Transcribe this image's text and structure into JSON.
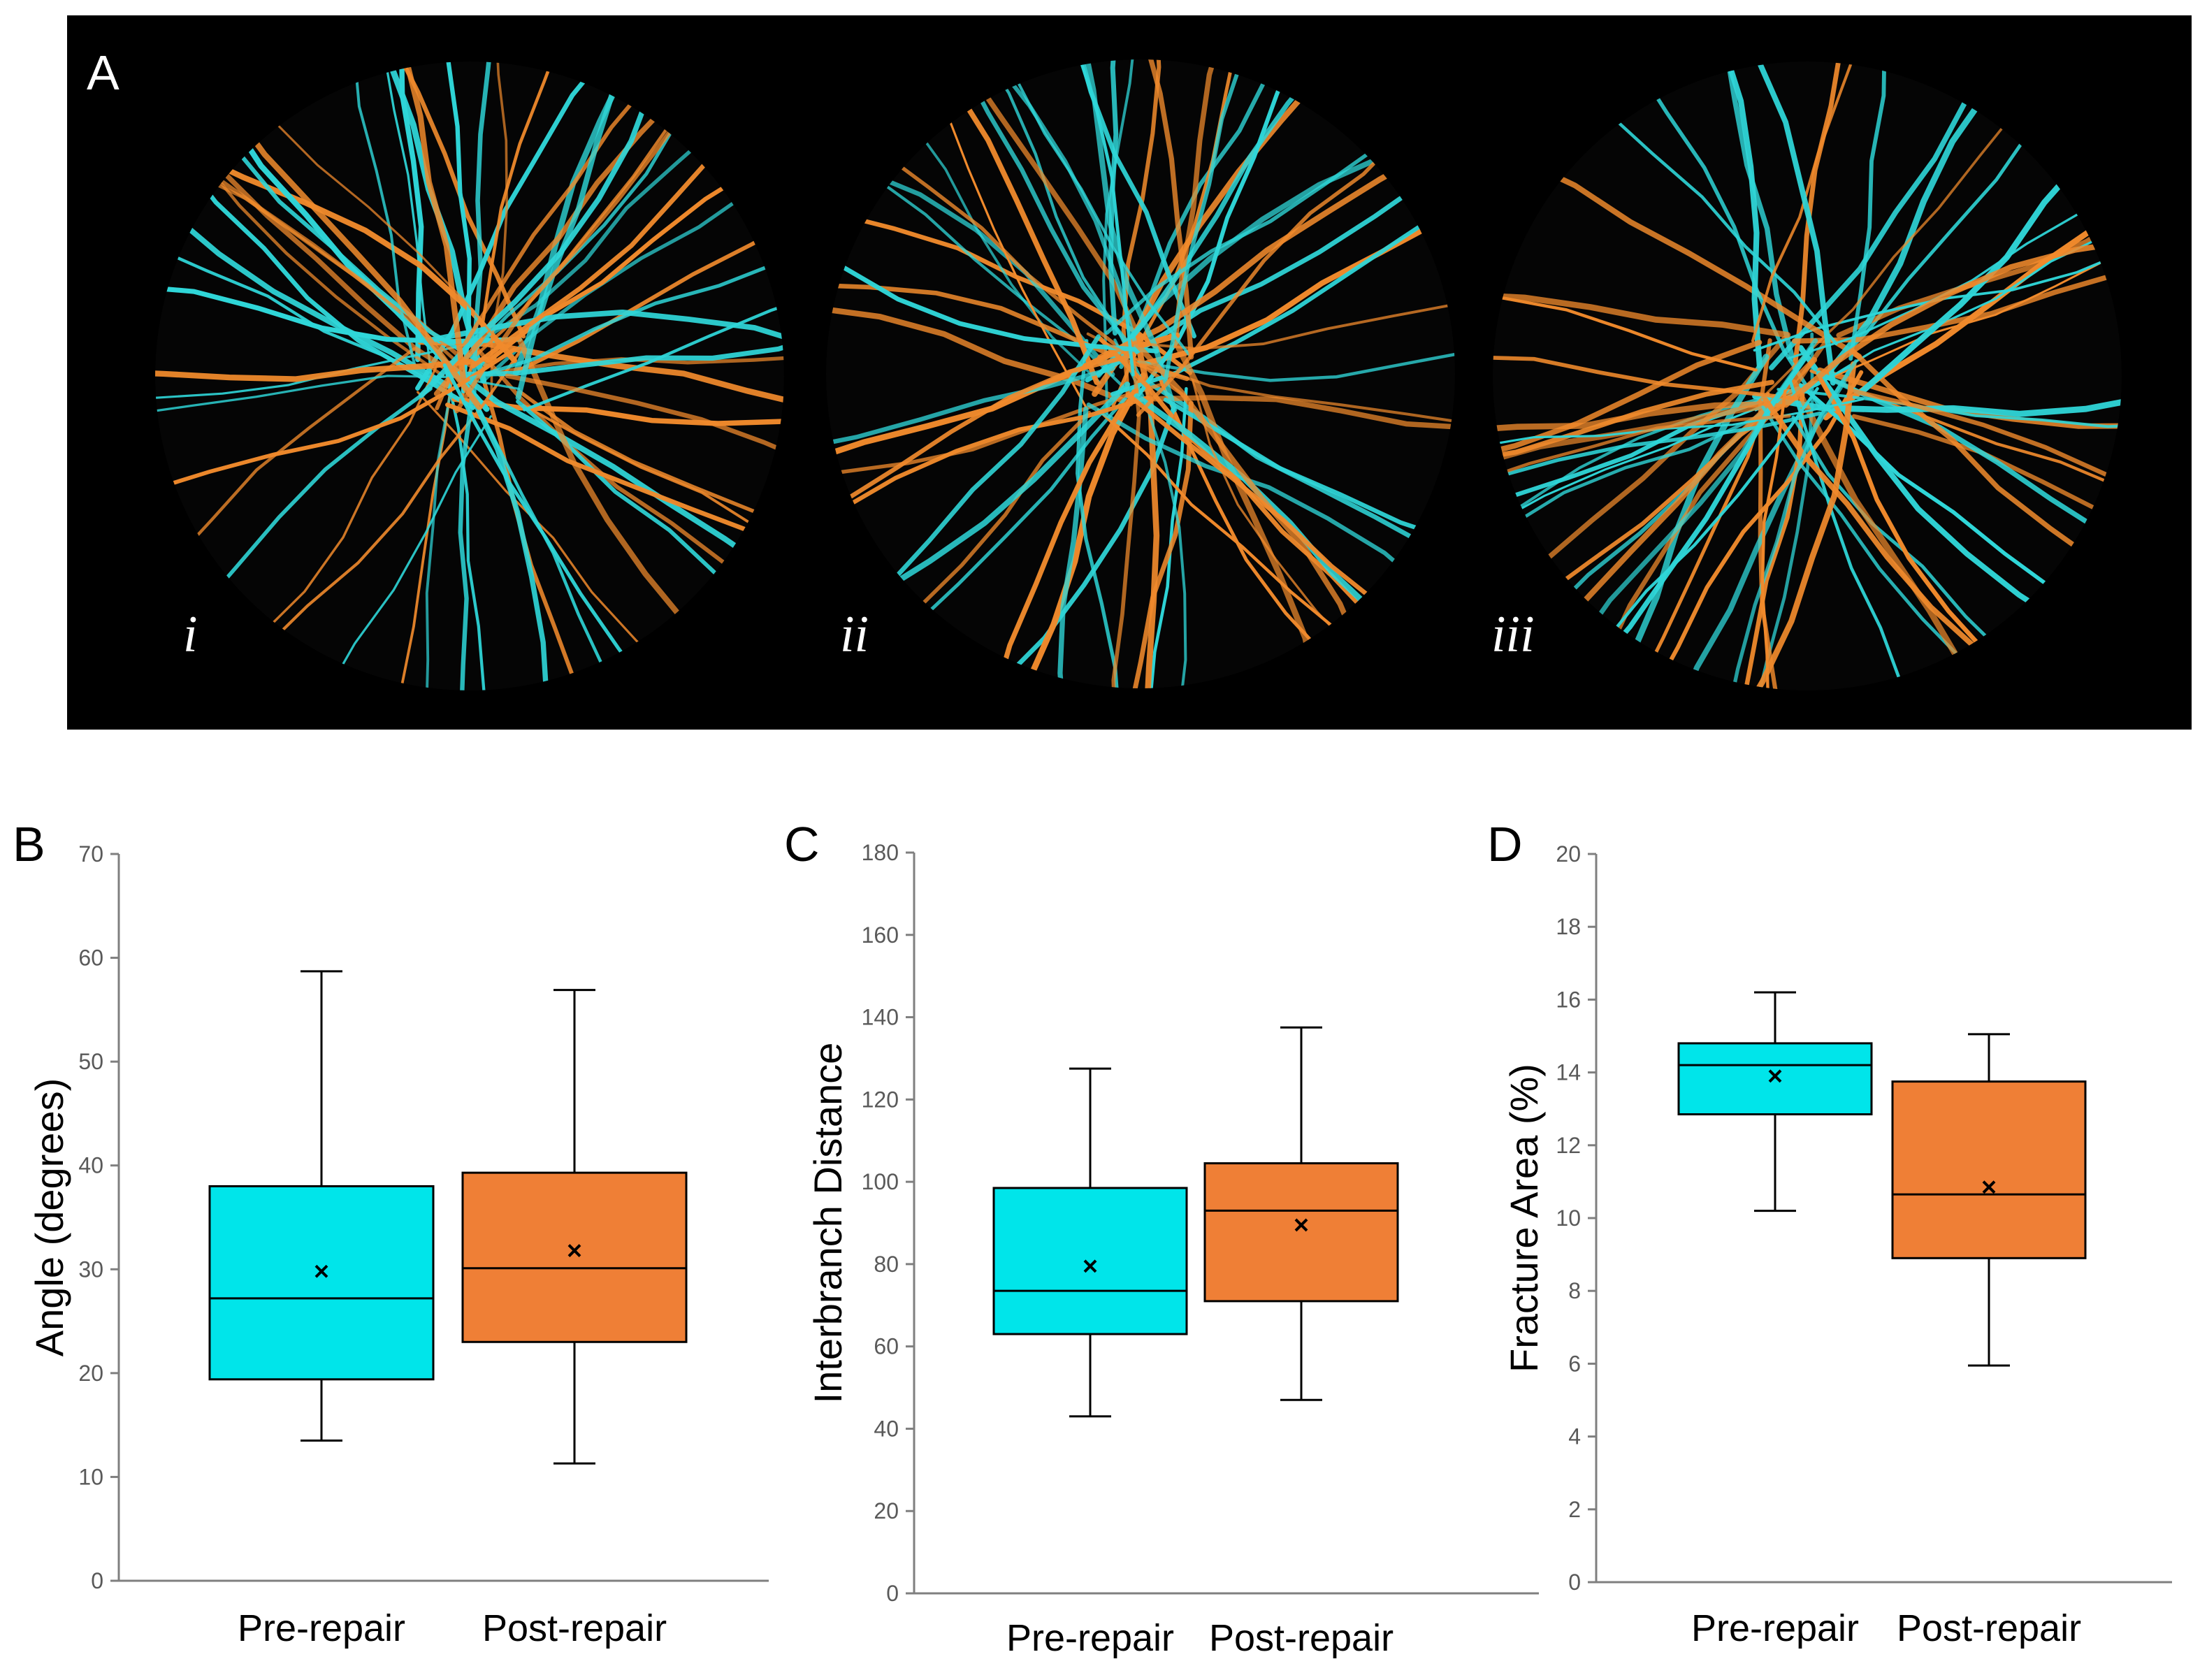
{
  "panels": {
    "A": {
      "label": "A",
      "sublabels": [
        "i",
        "ii",
        "iii"
      ]
    }
  },
  "colors": {
    "pre": "#00e5ea",
    "post": "#ef7f36",
    "pre_fiber": "#2fd6d8",
    "post_fiber": "#f08a2c",
    "background": "#000000",
    "text": "#000000",
    "axis": "#7f7f7f"
  },
  "chart_data": [
    {
      "panel": "B",
      "type": "box",
      "ylabel": "Angle (degrees)",
      "ylim": [
        0,
        70
      ],
      "yticks": [
        0,
        10,
        20,
        30,
        40,
        50,
        60,
        70
      ],
      "categories": [
        "Pre-repair",
        "Post-repair"
      ],
      "boxes": [
        {
          "name": "Pre-repair",
          "min": 13.5,
          "q1": 19.4,
          "median": 27.2,
          "q3": 38.0,
          "max": 58.7,
          "mean": 29.8
        },
        {
          "name": "Post-repair",
          "min": 11.3,
          "q1": 23.0,
          "median": 30.1,
          "q3": 39.3,
          "max": 56.9,
          "mean": 31.8
        }
      ]
    },
    {
      "panel": "C",
      "type": "box",
      "ylabel": "Interbranch Distance",
      "ylim": [
        0,
        180
      ],
      "yticks": [
        0,
        20,
        40,
        60,
        80,
        100,
        120,
        140,
        160,
        180
      ],
      "categories": [
        "Pre-repair",
        "Post-repair"
      ],
      "boxes": [
        {
          "name": "Pre-repair",
          "min": 43.0,
          "q1": 63.0,
          "median": 73.5,
          "q3": 98.5,
          "max": 127.5,
          "mean": 79.5
        },
        {
          "name": "Post-repair",
          "min": 47.0,
          "q1": 71.0,
          "median": 93.0,
          "q3": 104.5,
          "max": 137.5,
          "mean": 89.5
        }
      ]
    },
    {
      "panel": "D",
      "type": "box",
      "ylabel": "Fracture Area (%)",
      "ylim": [
        0,
        20
      ],
      "yticks": [
        0,
        2,
        4,
        6,
        8,
        10,
        12,
        14,
        16,
        18,
        20
      ],
      "categories": [
        "Pre-repair",
        "Post-repair"
      ],
      "boxes": [
        {
          "name": "Pre-repair",
          "min": 10.2,
          "q1": 12.85,
          "median": 14.2,
          "q3": 14.8,
          "max": 16.2,
          "mean": 13.9
        },
        {
          "name": "Post-repair",
          "min": 5.95,
          "q1": 8.9,
          "median": 10.65,
          "q3": 13.75,
          "max": 15.05,
          "mean": 10.85
        }
      ]
    }
  ]
}
